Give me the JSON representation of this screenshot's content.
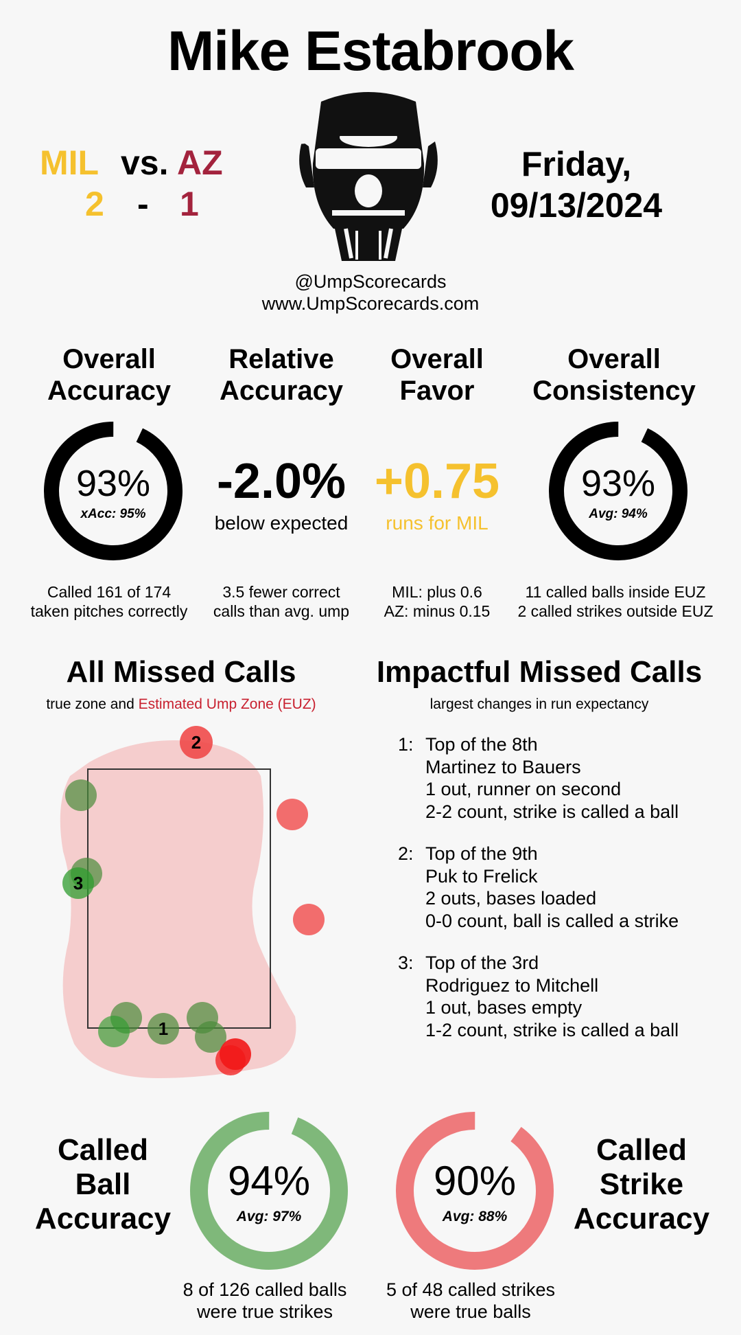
{
  "header": {
    "umpire_name": "Mike Estabrook",
    "home_team": "MIL",
    "vs_label": "vs.",
    "away_team": "AZ",
    "home_score": "2",
    "score_dash": "-",
    "away_score": "1",
    "day": "Friday,",
    "date": "09/13/2024",
    "social_handle": "@UmpScorecards",
    "website": "www.UmpScorecards.com",
    "colors": {
      "home": "#f5c12e",
      "away": "#a3233d"
    }
  },
  "stats": {
    "overall_accuracy": {
      "heading_line1": "Overall",
      "heading_line2": "Accuracy",
      "value": "93%",
      "sub": "xAcc: 95%",
      "fill_percent": 93,
      "foot_line1": "Called 161 of 174",
      "foot_line2": "taken pitches correctly"
    },
    "relative_accuracy": {
      "heading_line1": "Relative",
      "heading_line2": "Accuracy",
      "value": "-2.0%",
      "sub": "below expected",
      "foot_line1": "3.5 fewer correct",
      "foot_line2": "calls than avg. ump"
    },
    "overall_favor": {
      "heading_line1": "Overall",
      "heading_line2": "Favor",
      "value": "+0.75",
      "sub": "runs for MIL",
      "foot_line1": "MIL: plus 0.6",
      "foot_line2": "AZ: minus 0.15"
    },
    "overall_consistency": {
      "heading_line1": "Overall",
      "heading_line2": "Consistency",
      "value": "93%",
      "sub": "Avg: 94%",
      "fill_percent": 93,
      "foot_line1": "11 called balls inside EUZ",
      "foot_line2": "2 called strikes outside EUZ"
    }
  },
  "missed_calls": {
    "title": "All Missed Calls",
    "subtitle_prefix": "true zone and",
    "subtitle_highlight": "Estimated Ump Zone (EUZ)",
    "highlight_color": "#c8202f"
  },
  "impactful": {
    "title": "Impactful Missed Calls",
    "subtitle": "largest changes in run expectancy",
    "items": [
      {
        "num": "1:",
        "lines": [
          "Top of the 8th",
          "Martinez to Bauers",
          "1 out, runner on second",
          "2-2 count, strike is called a ball"
        ]
      },
      {
        "num": "2:",
        "lines": [
          "Top of the 9th",
          "Puk to Frelick",
          "2 outs, bases loaded",
          "0-0 count, ball is called a strike"
        ]
      },
      {
        "num": "3:",
        "lines": [
          "Top of the 3rd",
          "Rodriguez to Mitchell",
          "1 out, bases empty",
          "1-2 count, strike is called a ball"
        ]
      }
    ]
  },
  "called_ball": {
    "label_line1": "Called",
    "label_line2": "Ball",
    "label_line3": "Accuracy",
    "value": "94%",
    "sub": "Avg: 97%",
    "fill_percent": 94,
    "color": "#7fb87a",
    "foot_line1": "8 of 126 called balls",
    "foot_line2": "were true strikes"
  },
  "called_strike": {
    "label_line1": "Called",
    "label_line2": "Strike",
    "label_line3": "Accuracy",
    "value": "90%",
    "sub": "Avg: 88%",
    "fill_percent": 90,
    "color": "#ee7a7c",
    "foot_line1": "5 of 48 called strikes",
    "foot_line2": "were true balls"
  },
  "pitch_markers": [
    {
      "label": "2"
    },
    {
      "label": "3"
    },
    {
      "label": "1"
    }
  ]
}
